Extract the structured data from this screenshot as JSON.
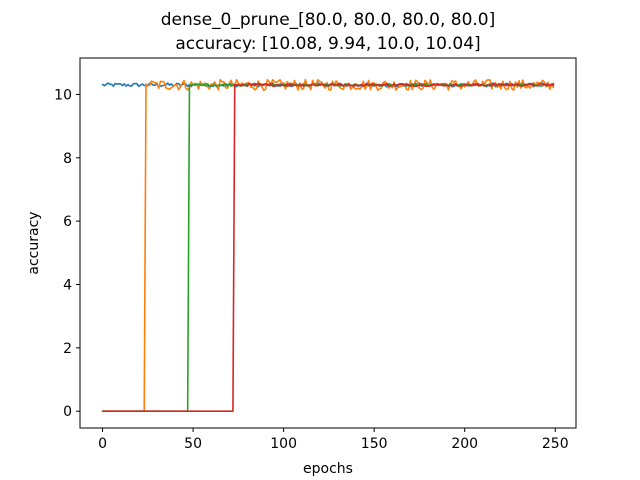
{
  "chart_data": {
    "type": "line",
    "title": "dense_0_prune_[80.0, 80.0, 80.0, 80.0]",
    "subtitle": "accuracy: [10.08, 9.94, 10.0, 10.04]",
    "xlabel": "epochs",
    "ylabel": "accuracy",
    "xlim": [
      -12.45,
      261.45
    ],
    "ylim": [
      -0.53,
      11.15
    ],
    "xticks": [
      0,
      50,
      100,
      150,
      200,
      250
    ],
    "yticks": [
      0,
      2,
      4,
      6,
      8,
      10
    ],
    "grid": false,
    "legend": "none",
    "series": [
      {
        "color": "#1f77b4",
        "jump_epoch": null,
        "start_value": 10.28,
        "final_level": 10.3,
        "noise": 0.06
      },
      {
        "color": "#ff7f0e",
        "jump_epoch": 24,
        "start_value": 0.0,
        "final_level": 10.3,
        "noise": 0.17
      },
      {
        "color": "#2ca02c",
        "jump_epoch": 48,
        "start_value": 0.0,
        "final_level": 10.3,
        "noise": 0.04
      },
      {
        "color": "#d62728",
        "jump_epoch": 73,
        "start_value": 0.0,
        "final_level": 10.3,
        "noise": 0.04
      }
    ],
    "n_epochs": 250
  }
}
